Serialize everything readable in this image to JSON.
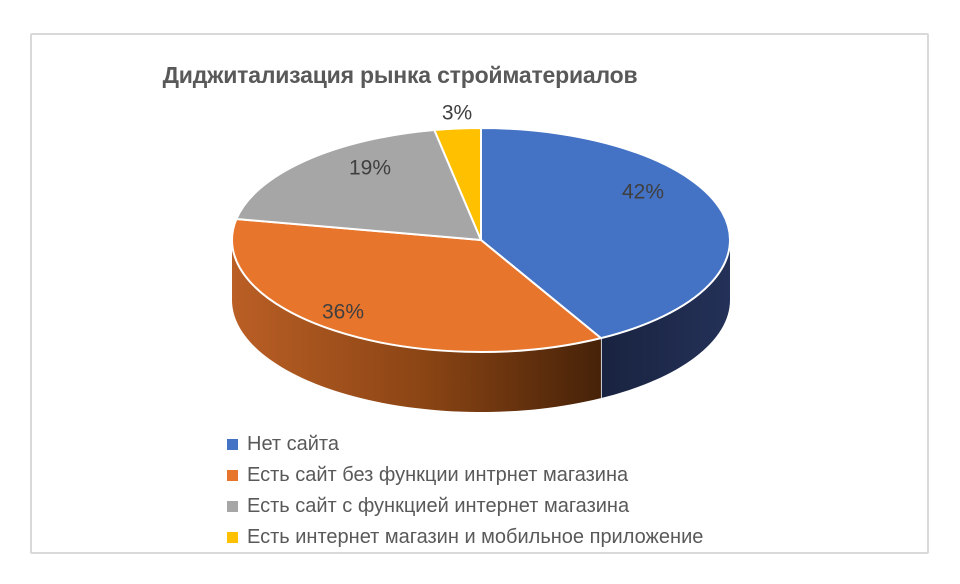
{
  "chart_data": {
    "type": "pie",
    "style": "3d",
    "title": "Диджитализация рынка стройматериалов",
    "unit": "%",
    "direction": "clockwise",
    "start_angle_deg": 0,
    "legend_position": "bottom-left",
    "slices": [
      {
        "label": "Нет сайта",
        "value": 42,
        "data_label": "42%",
        "color": "#4472C4"
      },
      {
        "label": "Есть сайт без функции интрнет магазина",
        "value": 36,
        "data_label": "36%",
        "color": "#E8752C"
      },
      {
        "label": "Есть сайт с функцией интернет магазина",
        "value": 19,
        "data_label": "19%",
        "color": "#A6A6A6"
      },
      {
        "label": "Есть интернет магазин и мобильное приложение",
        "value": 3,
        "data_label": "3%",
        "color": "#FFC000"
      }
    ]
  },
  "colors": {
    "title_text": "#595959",
    "legend_text": "#595959",
    "data_label_text": "#3F3F3F",
    "frame_border": "#D9D9D9",
    "background": "#FFFFFF",
    "slice_border": "#FFFFFF",
    "side_blue_dark": "#192340",
    "side_blue_light": "#243158",
    "side_orange_light": "#BA5F25",
    "side_orange_mid": "#8A4414",
    "side_orange_dark": "#3E1E07"
  }
}
